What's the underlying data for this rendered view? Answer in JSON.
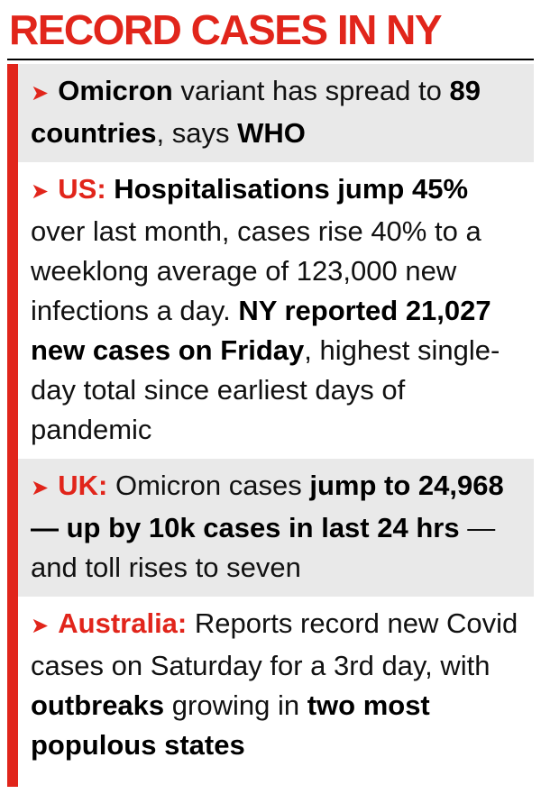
{
  "title": "RECORD CASES IN NY",
  "bullet_glyph": "➤",
  "colors": {
    "accent_red": "#e1251b",
    "band_gray": "#e9e9e9",
    "text_black": "#111111"
  },
  "sections": [
    {
      "id": "omicron-spread",
      "shaded": true,
      "segments": {
        "s0": "Omicron",
        "s1": " variant has spread to ",
        "s2": "89 countries",
        "s3": ", says ",
        "s4": "WHO"
      }
    },
    {
      "id": "us-update",
      "shaded": false,
      "segments": {
        "s0": "US: ",
        "s1": "Hospitalisations jump 45%",
        "s2": " over last month, cases rise 40% to a weeklong average of 123,000 new infections a day. ",
        "s3": "NY reported 21,027 new cases on Friday",
        "s4": ", highest single-day total since earliest days of pandemic"
      }
    },
    {
      "id": "uk-update",
      "shaded": true,
      "segments": {
        "s0": "UK: ",
        "s1": "Omicron cases ",
        "s2": "jump to 24,968 —  up by 10k cases in last 24 hrs",
        "s3": " — and toll rises to seven"
      }
    },
    {
      "id": "australia-update",
      "shaded": false,
      "segments": {
        "s0": "Australia: ",
        "s1": "Reports record new Covid cases on Saturday for a 3rd day, with ",
        "s2": "outbreaks",
        "s3": " growing in ",
        "s4": "two most populous states"
      }
    }
  ]
}
